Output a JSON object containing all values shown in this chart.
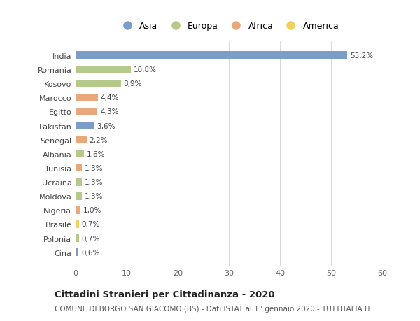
{
  "countries": [
    "India",
    "Romania",
    "Kosovo",
    "Marocco",
    "Egitto",
    "Pakistan",
    "Senegal",
    "Albania",
    "Tunisia",
    "Ucraina",
    "Moldova",
    "Nigeria",
    "Brasile",
    "Polonia",
    "Cina"
  ],
  "values": [
    53.2,
    10.8,
    8.9,
    4.4,
    4.3,
    3.6,
    2.2,
    1.6,
    1.3,
    1.3,
    1.3,
    1.0,
    0.7,
    0.7,
    0.6
  ],
  "labels": [
    "53,2%",
    "10,8%",
    "8,9%",
    "4,4%",
    "4,3%",
    "3,6%",
    "2,2%",
    "1,6%",
    "1,3%",
    "1,3%",
    "1,3%",
    "1,0%",
    "0,7%",
    "0,7%",
    "0,6%"
  ],
  "continents": [
    "Asia",
    "Europa",
    "Europa",
    "Africa",
    "Africa",
    "Asia",
    "Africa",
    "Europa",
    "Africa",
    "Europa",
    "Europa",
    "Africa",
    "America",
    "Europa",
    "Asia"
  ],
  "continent_colors": {
    "Asia": "#7b9dc7",
    "Europa": "#b5c98a",
    "Africa": "#e8a87c",
    "America": "#f0d060"
  },
  "legend_order": [
    "Asia",
    "Europa",
    "Africa",
    "America"
  ],
  "title": "Cittadini Stranieri per Cittadinanza - 2020",
  "subtitle": "COMUNE DI BORGO SAN GIACOMO (BS) - Dati ISTAT al 1° gennaio 2020 - TUTTITALIA.IT",
  "xlim": [
    0,
    60
  ],
  "xticks": [
    0,
    10,
    20,
    30,
    40,
    50,
    60
  ],
  "bg_color": "#ffffff",
  "bar_height": 0.55,
  "grid_color": "#d8d8d8"
}
